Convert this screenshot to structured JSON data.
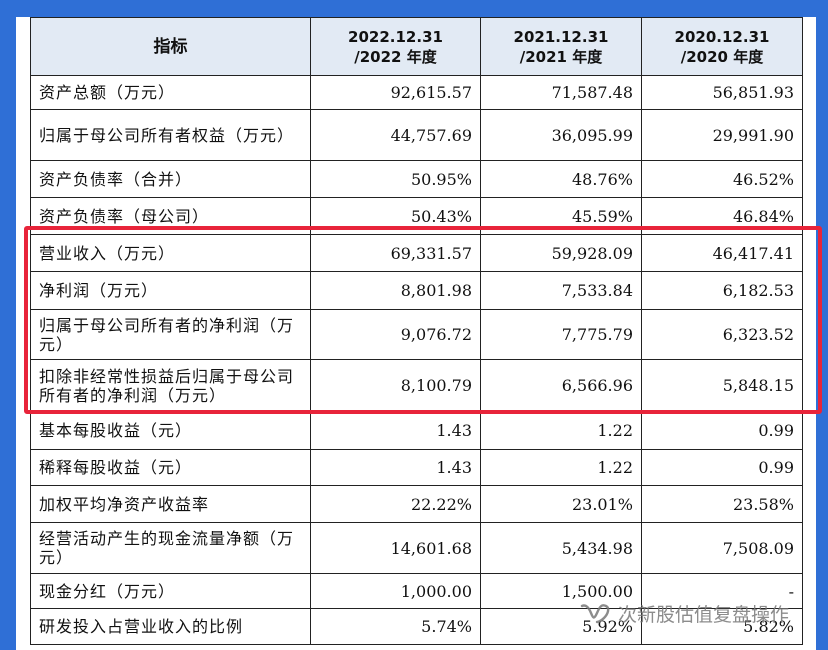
{
  "header": {
    "indicator": "指标",
    "col2022": [
      "2022.12.31",
      "/2022 年度"
    ],
    "col2021": [
      "2021.12.31",
      "/2021 年度"
    ],
    "col2020": [
      "2020.12.31",
      "/2020 年度"
    ]
  },
  "rows": [
    {
      "label": "资产总额（万元）",
      "v2022": "92,615.57",
      "v2021": "71,587.48",
      "v2020": "56,851.93"
    },
    {
      "label": "归属于母公司所有者权益（万元）",
      "v2022": "44,757.69",
      "v2021": "36,095.99",
      "v2020": "29,991.90"
    },
    {
      "label": "资产负债率（合并）",
      "v2022": "50.95%",
      "v2021": "48.76%",
      "v2020": "46.52%"
    },
    {
      "label": "资产负债率（母公司）",
      "v2022": "50.43%",
      "v2021": "45.59%",
      "v2020": "46.84%"
    },
    {
      "label": "营业收入（万元）",
      "v2022": "69,331.57",
      "v2021": "59,928.09",
      "v2020": "46,417.41"
    },
    {
      "label": "净利润（万元）",
      "v2022": "8,801.98",
      "v2021": "7,533.84",
      "v2020": "6,182.53"
    },
    {
      "label": "归属于母公司所有者的净利润（万元）",
      "v2022": "9,076.72",
      "v2021": "7,775.79",
      "v2020": "6,323.52"
    },
    {
      "label": "扣除非经常性损益后归属于母公司所有者的净利润（万元）",
      "v2022": "8,100.79",
      "v2021": "6,566.96",
      "v2020": "5,848.15"
    },
    {
      "label": "基本每股收益（元）",
      "v2022": "1.43",
      "v2021": "1.22",
      "v2020": "0.99"
    },
    {
      "label": "稀释每股收益（元）",
      "v2022": "1.43",
      "v2021": "1.22",
      "v2020": "0.99"
    },
    {
      "label": "加权平均净资产收益率",
      "v2022": "22.22%",
      "v2021": "23.01%",
      "v2020": "23.58%"
    },
    {
      "label": "经营活动产生的现金流量净额（万元）",
      "v2022": "14,601.68",
      "v2021": "5,434.98",
      "v2020": "7,508.09"
    },
    {
      "label": "现金分红（万元）",
      "v2022": "1,000.00",
      "v2021": "1,500.00",
      "v2020": "-"
    },
    {
      "label": "研发投入占营业收入的比例",
      "v2022": "5.74%",
      "v2021": "5.92%",
      "v2020": "5.82%"
    }
  ],
  "watermark": {
    "text": "次新股估值复盘操作",
    "icon": "wechat-channel-icon"
  },
  "colors": {
    "frame": "#2f6fd6",
    "header_bg": "#e2eaf4",
    "highlight": "#e8243a"
  }
}
